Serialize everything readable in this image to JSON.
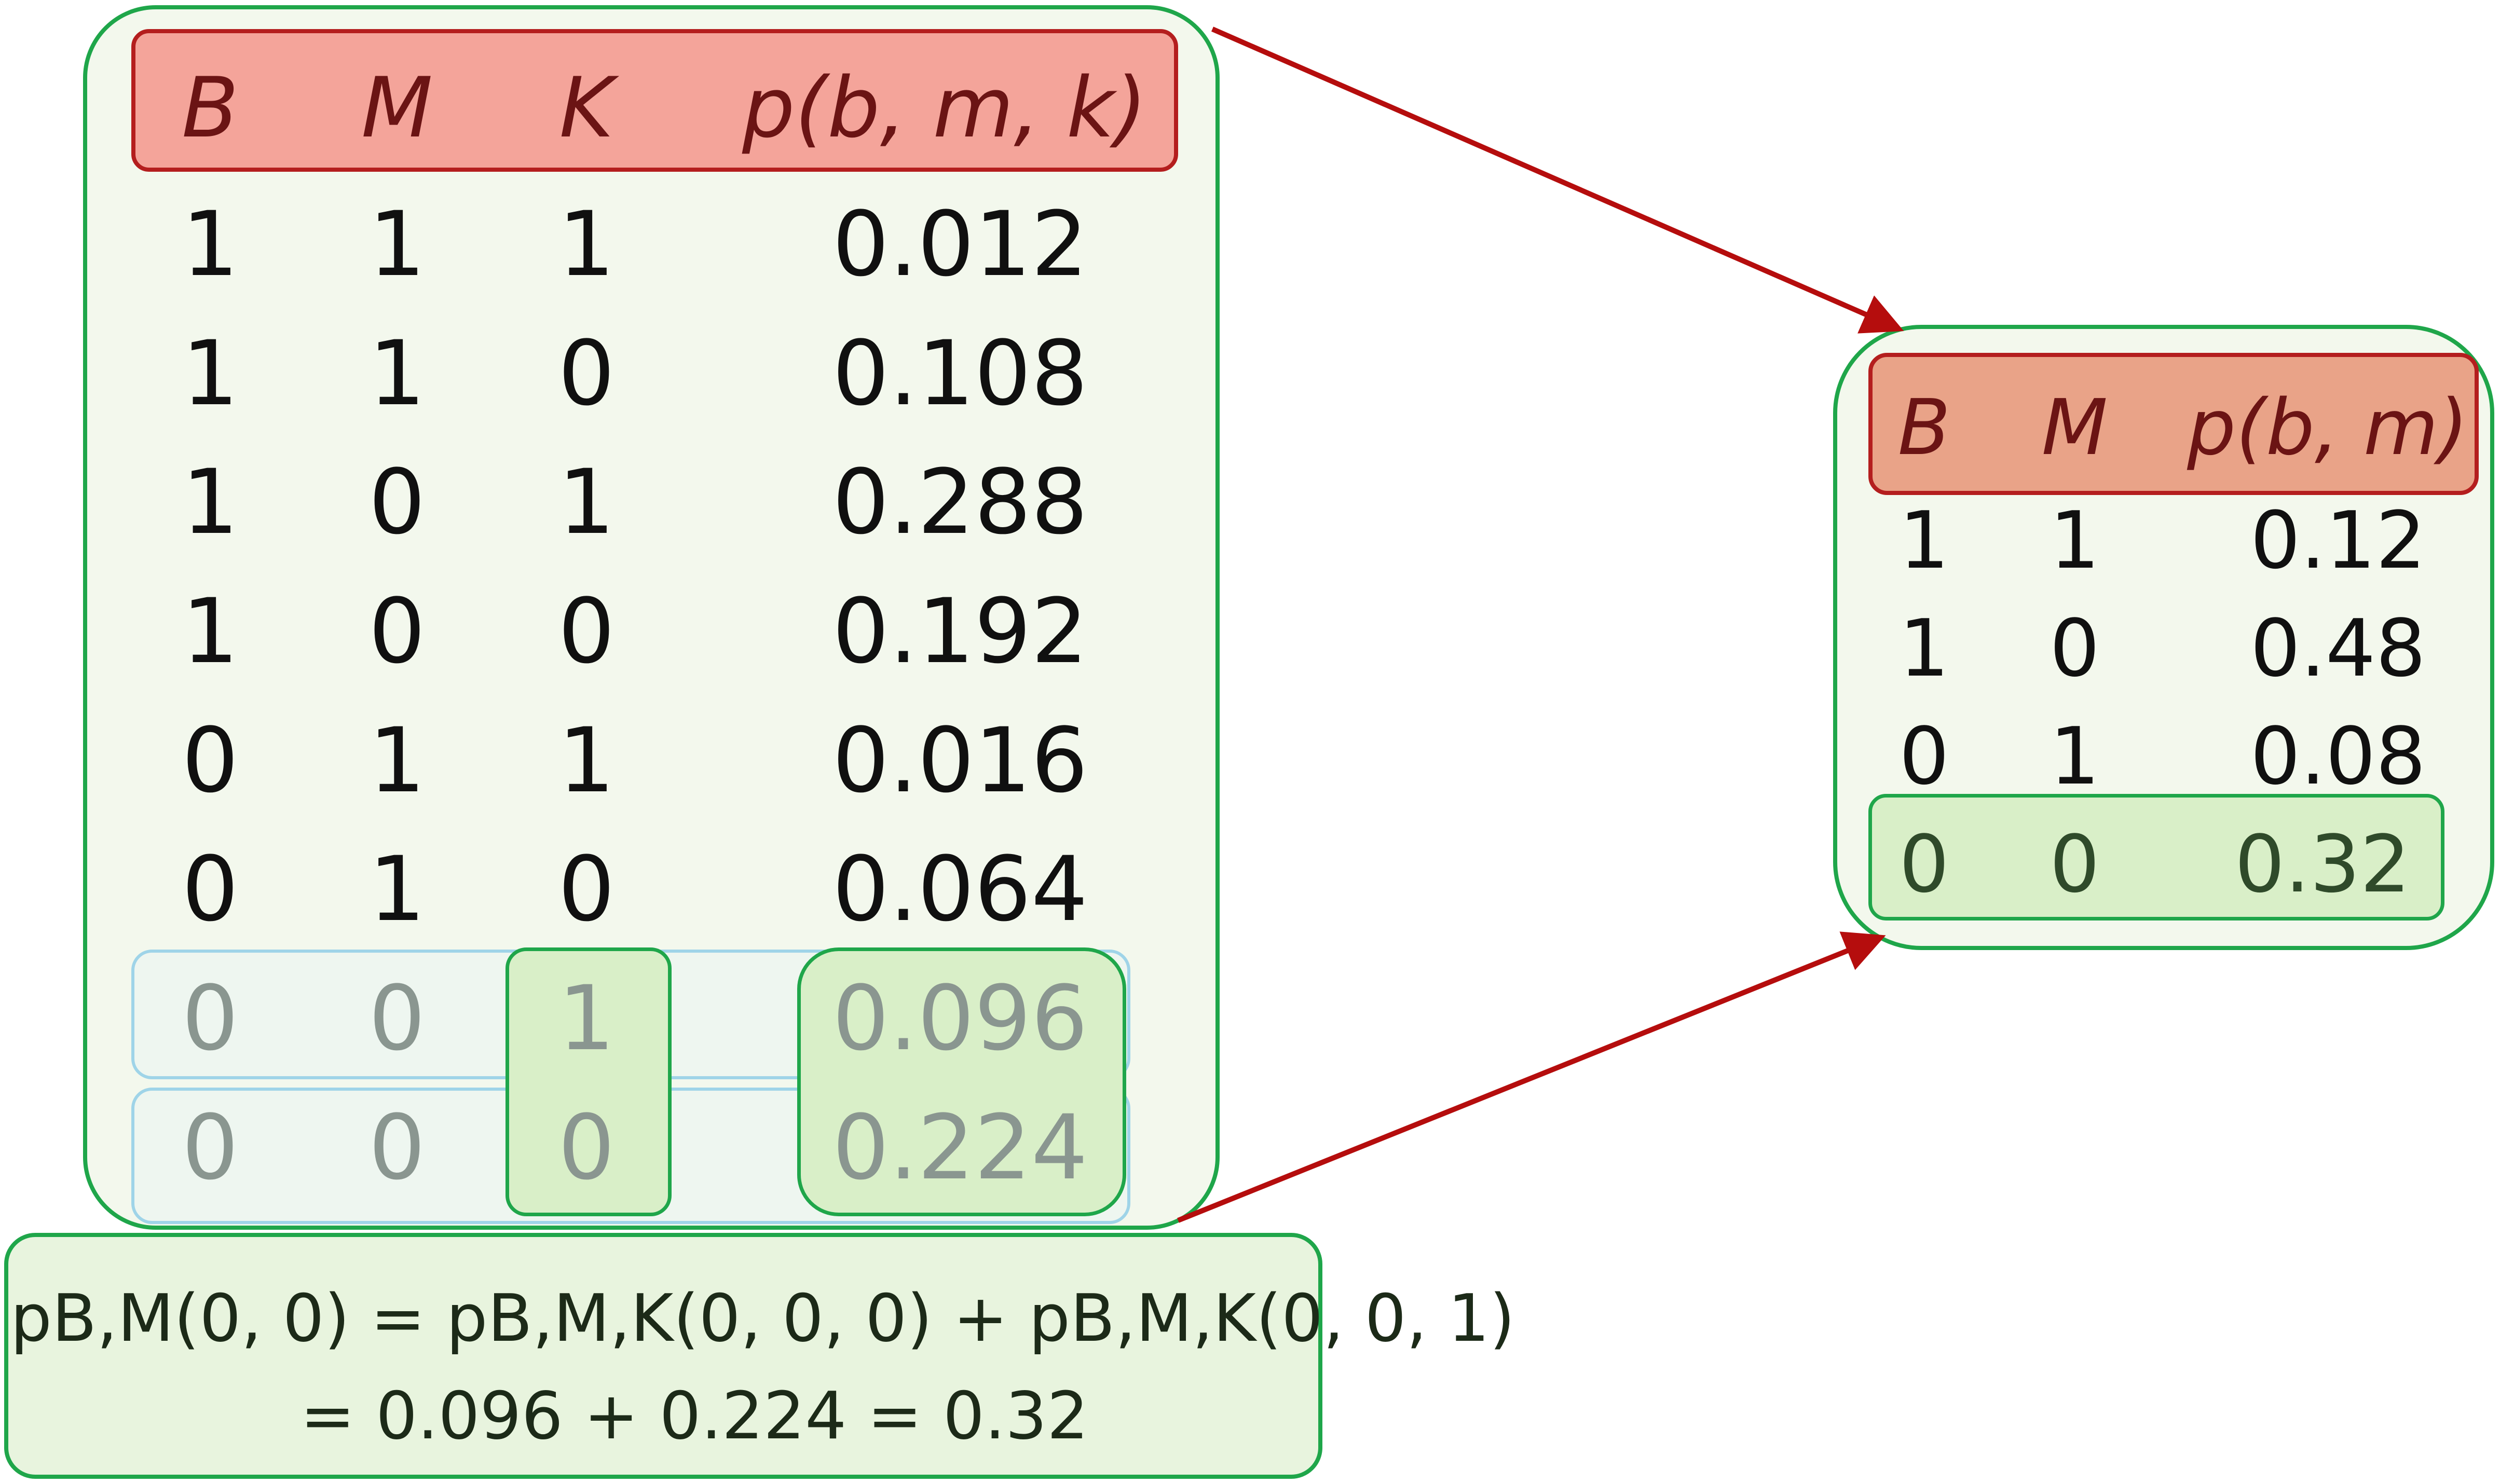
{
  "source_table": {
    "headers": [
      "B",
      "M",
      "K",
      "p(b, m, k)"
    ],
    "rows": [
      [
        "1",
        "1",
        "1",
        "0.012"
      ],
      [
        "1",
        "1",
        "0",
        "0.108"
      ],
      [
        "1",
        "0",
        "1",
        "0.288"
      ],
      [
        "1",
        "0",
        "0",
        "0.192"
      ],
      [
        "0",
        "1",
        "1",
        "0.016"
      ],
      [
        "0",
        "1",
        "0",
        "0.064"
      ],
      [
        "0",
        "0",
        "1",
        "0.096"
      ],
      [
        "0",
        "0",
        "0",
        "0.224"
      ]
    ]
  },
  "marginal_table": {
    "headers": [
      "B",
      "M",
      "p(b, m)"
    ],
    "rows": [
      [
        "1",
        "1",
        "0.12"
      ],
      [
        "1",
        "0",
        "0.48"
      ],
      [
        "0",
        "1",
        "0.08"
      ],
      [
        "0",
        "0",
        "0.32"
      ]
    ]
  },
  "formula": {
    "line1": "pB,M(0, 0) = pB,M,K(0, 0, 0) + pB,M,K(0, 0, 1)",
    "line2": "= 0.096 + 0.224 = 0.32"
  },
  "colors": {
    "panel_fill": "#f3f8ed",
    "panel_border": "#1fa64a",
    "header_fill": "#f4a49a",
    "header_border": "#b41e1e",
    "highlight_fill": "#d9efc8",
    "row_outline": "#9fd4e8",
    "arrow": "#b50d0d"
  }
}
